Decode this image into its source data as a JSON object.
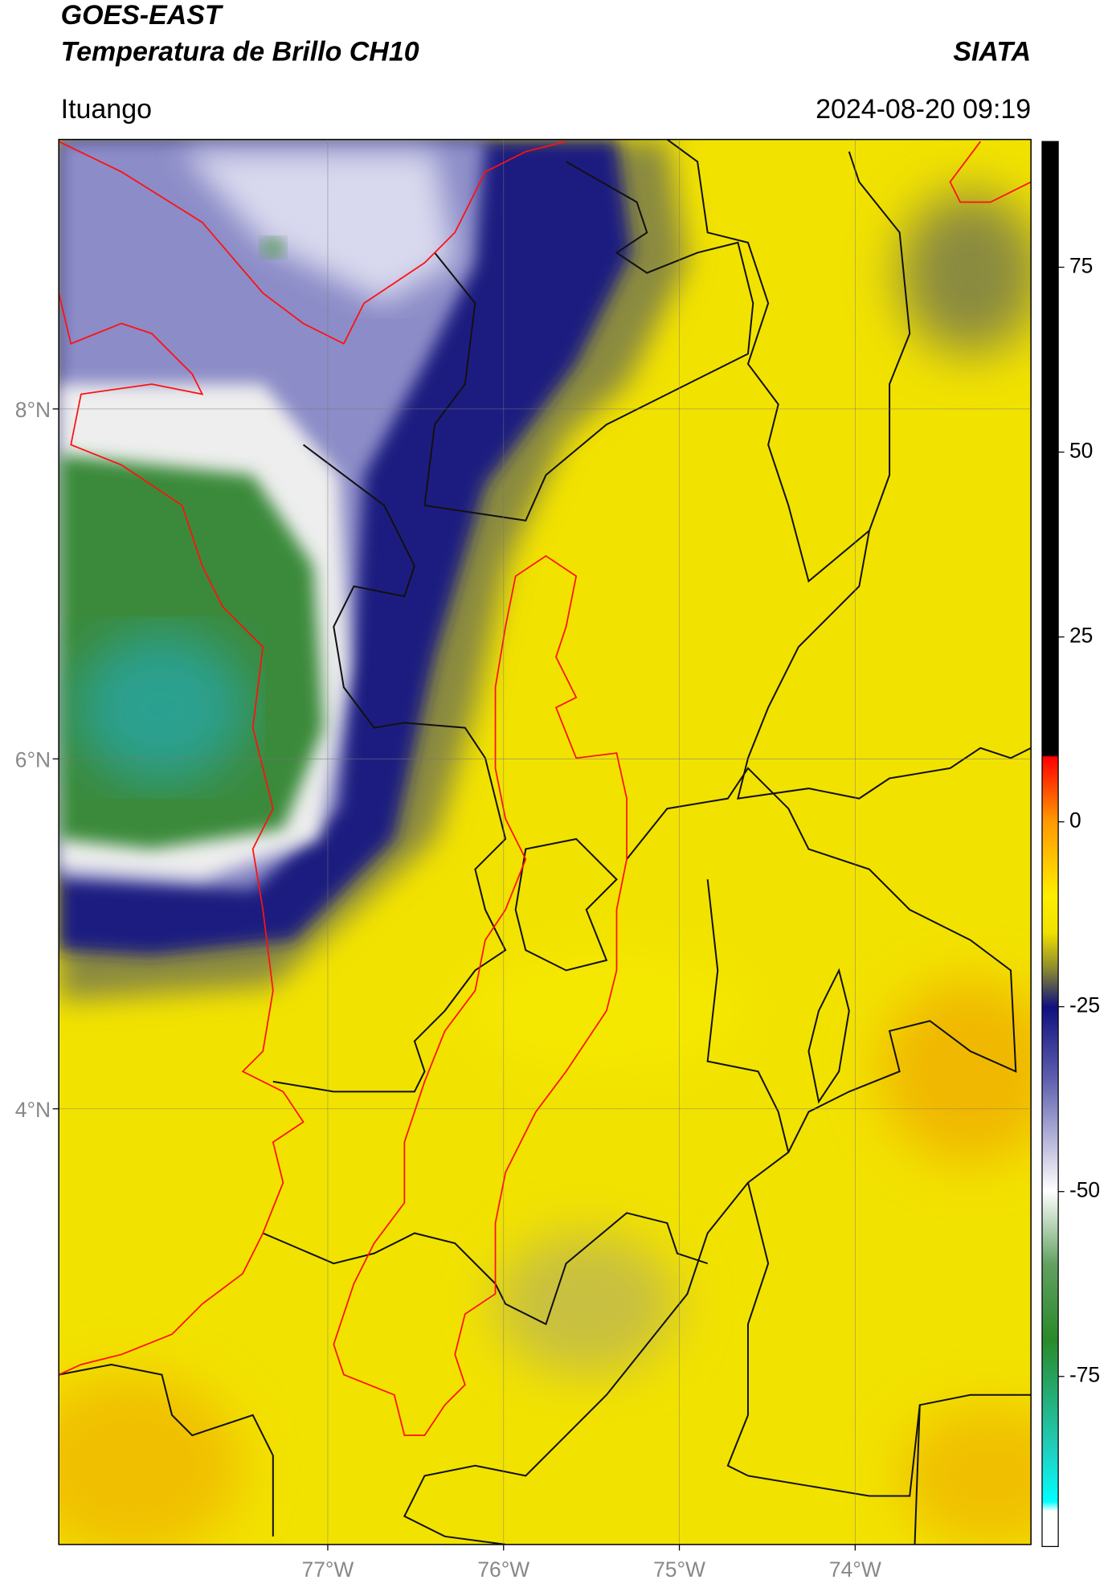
{
  "header": {
    "title": "GOES-EAST",
    "subtitle": "Temperatura de Brillo CH10",
    "source": "SIATA",
    "region": "Ituango",
    "datetime": "2024-08-20 09:19"
  },
  "map": {
    "lonlim": [
      -78.53,
      -73.0
    ],
    "latlim": [
      1.51,
      9.54
    ],
    "lonticks": [
      {
        "value": -77,
        "label": "77°W"
      },
      {
        "value": -76,
        "label": "76°W"
      },
      {
        "value": -75,
        "label": "75°W"
      },
      {
        "value": -74,
        "label": "74°W"
      }
    ],
    "latticks": [
      {
        "value": 8,
        "label": "8°N"
      },
      {
        "value": 6,
        "label": "6°N"
      },
      {
        "value": 4,
        "label": "4°N"
      }
    ],
    "grid": true
  },
  "colorbar": {
    "lim": [
      -98,
      92
    ],
    "ticks": [
      75,
      50,
      25,
      0,
      -25,
      -50,
      -75
    ]
  }
}
